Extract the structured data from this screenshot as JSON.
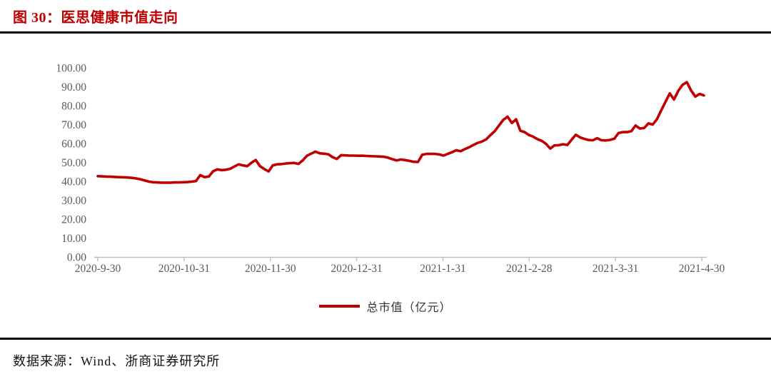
{
  "figure": {
    "title": "图 30：医思健康市值走向",
    "source": "数据来源：Wind、浙商证券研究所"
  },
  "chart_data": {
    "type": "line",
    "title": "医思健康市值走向",
    "x_tick_labels": [
      "2020-9-30",
      "2020-10-31",
      "2020-11-30",
      "2020-12-31",
      "2021-1-31",
      "2021-2-28",
      "2021-3-31",
      "2021-4-30"
    ],
    "y_tick_labels": [
      "0.00",
      "10.00",
      "20.00",
      "30.00",
      "40.00",
      "50.00",
      "60.00",
      "70.00",
      "80.00",
      "90.00",
      "100.00"
    ],
    "y_ticks": [
      0,
      10,
      20,
      30,
      40,
      50,
      60,
      70,
      80,
      90,
      100
    ],
    "ylim": [
      0,
      100
    ],
    "grid": false,
    "legend_position": "bottom-center",
    "axis_color": "#BFBFBF",
    "label_color": "#595959",
    "series": [
      {
        "name": "总市值（亿元）",
        "color": "#C00000",
        "values": [
          42.7,
          42.6,
          42.5,
          42.4,
          42.3,
          42.2,
          42.1,
          42.0,
          41.8,
          41.5,
          41.0,
          40.4,
          39.8,
          39.5,
          39.4,
          39.3,
          39.3,
          39.3,
          39.4,
          39.4,
          39.5,
          39.6,
          39.8,
          40.1,
          43.3,
          42.2,
          42.5,
          45.3,
          46.3,
          45.9,
          46.1,
          46.6,
          47.8,
          49.0,
          48.4,
          48.0,
          49.8,
          51.3,
          48.0,
          46.5,
          45.2,
          48.4,
          49.0,
          49.1,
          49.4,
          49.6,
          49.7,
          49.2,
          51.0,
          53.5,
          54.6,
          55.7,
          54.8,
          54.6,
          54.3,
          52.8,
          51.8,
          53.8,
          53.7,
          53.6,
          53.6,
          53.5,
          53.5,
          53.4,
          53.3,
          53.2,
          53.1,
          53.0,
          52.5,
          51.7,
          51.0,
          51.5,
          51.2,
          50.8,
          50.3,
          50.2,
          54.0,
          54.5,
          54.5,
          54.5,
          54.2,
          53.6,
          54.5,
          55.4,
          56.4,
          55.9,
          57.0,
          58.0,
          59.2,
          60.3,
          61.0,
          62.2,
          64.5,
          66.5,
          69.5,
          72.5,
          74.2,
          70.8,
          72.8,
          66.7,
          66.0,
          64.5,
          63.6,
          62.3,
          61.4,
          59.8,
          57.3,
          59.0,
          59.1,
          59.6,
          59.2,
          62.0,
          64.6,
          63.2,
          62.4,
          61.8,
          61.7,
          62.8,
          61.7,
          61.6,
          61.9,
          62.5,
          65.5,
          66.0,
          66.0,
          66.5,
          69.5,
          67.9,
          68.2,
          70.6,
          70.0,
          72.8,
          77.5,
          82.0,
          86.5,
          83.2,
          87.8,
          91.0,
          92.4,
          88.0,
          84.8,
          86.2,
          85.4
        ]
      }
    ]
  }
}
